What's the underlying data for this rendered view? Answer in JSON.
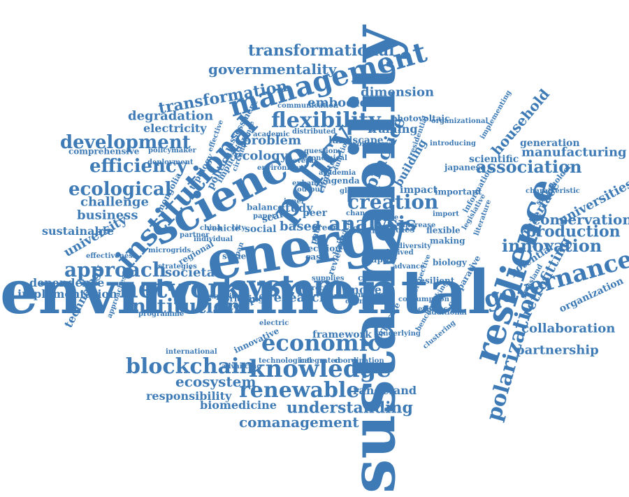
{
  "ink": "#3e7bb6",
  "words": [
    {
      "text": "environmental"
    },
    {
      "text": "sustainability"
    },
    {
      "text": "energy"
    },
    {
      "text": "science"
    },
    {
      "text": "institutional"
    },
    {
      "text": "management"
    },
    {
      "text": "resilience"
    },
    {
      "text": "policy"
    },
    {
      "text": "system"
    },
    {
      "text": "network"
    },
    {
      "text": "economic"
    },
    {
      "text": "knowledge"
    },
    {
      "text": "blockchain"
    },
    {
      "text": "governance"
    },
    {
      "text": "renewable"
    },
    {
      "text": "institution"
    },
    {
      "text": "approach"
    },
    {
      "text": "polarization"
    },
    {
      "text": "flexibility"
    },
    {
      "text": "development"
    },
    {
      "text": "efficiency"
    },
    {
      "text": "ecological"
    },
    {
      "text": "analysis"
    },
    {
      "text": "creation"
    },
    {
      "text": "practice"
    },
    {
      "text": "association"
    },
    {
      "text": "innovation"
    },
    {
      "text": "production"
    },
    {
      "text": "understanding"
    },
    {
      "text": "comanagement"
    },
    {
      "text": "transformation"
    },
    {
      "text": "transformational"
    },
    {
      "text": "governmentality"
    },
    {
      "text": "ecosystem"
    },
    {
      "text": "household"
    },
    {
      "text": "manufacturing"
    },
    {
      "text": "conservation"
    },
    {
      "text": "collaboration"
    },
    {
      "text": "retrofitting"
    },
    {
      "text": "partnership"
    },
    {
      "text": "universities"
    },
    {
      "text": "interface"
    },
    {
      "text": "degradation"
    },
    {
      "text": "embodied"
    },
    {
      "text": "dimension"
    },
    {
      "text": "problem"
    },
    {
      "text": "ecology"
    },
    {
      "text": "business"
    },
    {
      "text": "challenge"
    },
    {
      "text": "sustainable"
    },
    {
      "text": "university"
    },
    {
      "text": "societal"
    },
    {
      "text": "dependence"
    },
    {
      "text": "implementation"
    },
    {
      "text": "technology"
    },
    {
      "text": "research"
    },
    {
      "text": "responsibility"
    },
    {
      "text": "biomedicine"
    },
    {
      "text": "rangeland"
    },
    {
      "text": "electricity"
    },
    {
      "text": "framing"
    },
    {
      "text": "landscape"
    },
    {
      "text": "building"
    },
    {
      "text": "scientific"
    },
    {
      "text": "generation"
    },
    {
      "text": "japanese"
    },
    {
      "text": "potential"
    },
    {
      "text": "organization"
    },
    {
      "text": "impact"
    },
    {
      "text": "based"
    },
    {
      "text": "social"
    },
    {
      "text": "study"
    },
    {
      "text": "scale"
    },
    {
      "text": "peer"
    },
    {
      "text": "complex"
    },
    {
      "text": "model"
    },
    {
      "text": "framework"
    },
    {
      "text": "innovative"
    },
    {
      "text": "political"
    },
    {
      "text": "mongolia"
    },
    {
      "text": "effectiveness"
    },
    {
      "text": "comprehensive"
    },
    {
      "text": "photovoltaic"
    },
    {
      "text": "implementing"
    },
    {
      "text": "stakeholder"
    },
    {
      "text": "characteristic"
    },
    {
      "text": "information"
    },
    {
      "text": "legislative"
    },
    {
      "text": "grassland"
    },
    {
      "text": "benchmarking"
    },
    {
      "text": "comparative"
    },
    {
      "text": "corporate"
    },
    {
      "text": "resilient"
    },
    {
      "text": "evidence"
    },
    {
      "text": "clustering"
    },
    {
      "text": "technological"
    },
    {
      "text": "integrated"
    },
    {
      "text": "coordination"
    },
    {
      "text": "international"
    },
    {
      "text": "advancing"
    },
    {
      "text": "programme"
    },
    {
      "text": "approaches"
    },
    {
      "text": "microgrids"
    },
    {
      "text": "strategies"
    },
    {
      "text": "regional"
    },
    {
      "text": "vehicle"
    },
    {
      "text": "society"
    },
    {
      "text": "bridging"
    },
    {
      "text": "direct"
    },
    {
      "text": "countrie"
    },
    {
      "text": "supply"
    },
    {
      "text": "critical"
    },
    {
      "text": "future"
    },
    {
      "text": "studies"
    },
    {
      "text": "flexible"
    },
    {
      "text": "making"
    },
    {
      "text": "biology"
    },
    {
      "text": "important"
    },
    {
      "text": "introducing"
    },
    {
      "text": "organizational"
    },
    {
      "text": "residential"
    },
    {
      "text": "communication"
    },
    {
      "text": "distributed"
    },
    {
      "text": "academic"
    },
    {
      "text": "assessment"
    },
    {
      "text": "policymaker"
    },
    {
      "text": "deployment"
    },
    {
      "text": "implication"
    },
    {
      "text": "typology"
    },
    {
      "text": "balance"
    },
    {
      "text": "inner"
    },
    {
      "text": "output"
    },
    {
      "text": "green"
    },
    {
      "text": "increase"
    },
    {
      "text": "diversity"
    },
    {
      "text": "voluntary"
    },
    {
      "text": "climate"
    },
    {
      "text": "review"
    },
    {
      "text": "agenda"
    },
    {
      "text": "enhance"
    },
    {
      "text": "question"
    },
    {
      "text": "economical"
    },
    {
      "text": "environment"
    },
    {
      "text": "several"
    },
    {
      "text": "paper"
    },
    {
      "text": "change"
    },
    {
      "text": "nature"
    },
    {
      "text": "decision"
    },
    {
      "text": "path"
    },
    {
      "text": "case"
    },
    {
      "text": "chain"
    },
    {
      "text": "advice"
    },
    {
      "text": "japan"
    },
    {
      "text": "electric"
    },
    {
      "text": "underlying"
    },
    {
      "text": "perspective"
    },
    {
      "text": "advance"
    },
    {
      "text": "derived"
    },
    {
      "text": "import"
    },
    {
      "text": "literature"
    },
    {
      "text": "consumption"
    },
    {
      "text": "additional"
    },
    {
      "text": "experience"
    },
    {
      "text": "transform"
    },
    {
      "text": "academia"
    },
    {
      "text": "function"
    },
    {
      "text": "supplies"
    },
    {
      "text": "global"
    },
    {
      "text": "city"
    },
    {
      "text": "china"
    },
    {
      "text": "partner"
    },
    {
      "text": "effective"
    },
    {
      "text": "individual"
    },
    {
      "text": "circumstance"
    },
    {
      "text": "practical"
    },
    {
      "text": "penetration"
    }
  ]
}
